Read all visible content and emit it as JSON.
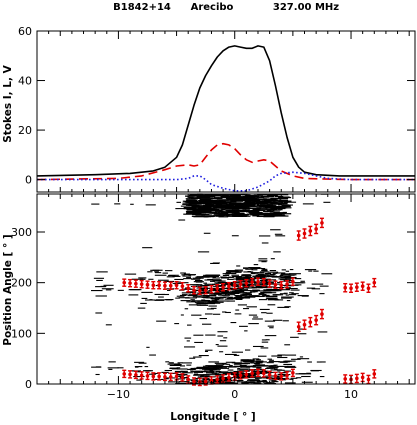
{
  "header": {
    "pulsar": "B1842+14",
    "telescope": "Arecibo",
    "frequency": "327.00 MHz"
  },
  "colors": {
    "stokes_i": "#000000",
    "linear_l": "#e00000",
    "circular_v": "#2020e0",
    "pa_points": "#e00000",
    "density": "#000000"
  },
  "chart_data": [
    {
      "type": "line",
      "title": "",
      "xlabel": "",
      "ylabel": "Stokes I, L, V",
      "xlim": [
        -17,
        15.5
      ],
      "ylim": [
        -5,
        60
      ],
      "x_ticks": [
        -10,
        0,
        10
      ],
      "y_ticks": [
        0,
        20,
        40,
        60
      ],
      "y_tick_labels": [
        "0",
        "20",
        "40",
        "60"
      ],
      "grid": false,
      "legend": "none",
      "series": [
        {
          "key": "I",
          "line_style": "solid",
          "color": "#000000",
          "x": [
            -17,
            -12,
            -9,
            -7,
            -6,
            -5,
            -4.5,
            -4,
            -3.5,
            -3,
            -2.5,
            -2,
            -1.5,
            -1,
            -0.5,
            0,
            0.5,
            1,
            1.5,
            2,
            2.5,
            3,
            3.5,
            4,
            4.5,
            5,
            5.5,
            6,
            7,
            9,
            15.5
          ],
          "values": [
            1.5,
            2,
            2.5,
            3.5,
            5,
            9,
            14,
            22,
            30,
            37,
            42,
            46,
            49.5,
            52,
            53.5,
            54,
            53.5,
            53,
            53,
            54,
            53.5,
            48,
            38,
            27,
            17,
            9,
            5,
            3,
            2,
            1.5,
            1.5
          ]
        },
        {
          "key": "L",
          "line_style": "dashed",
          "color": "#e00000",
          "x": [
            -17,
            -10,
            -8,
            -6,
            -5,
            -4,
            -3.5,
            -3,
            -2.5,
            -2,
            -1.5,
            -1,
            -0.5,
            0,
            0.5,
            1,
            1.5,
            2,
            2.5,
            3,
            3.5,
            4,
            5,
            6,
            8,
            10,
            15.5
          ],
          "values": [
            0,
            0.5,
            1.5,
            4,
            5.5,
            6,
            5.5,
            6,
            9,
            12,
            14,
            14.5,
            14,
            12.5,
            10,
            8,
            7,
            7.5,
            8,
            7.5,
            5.5,
            3.5,
            1.5,
            0.5,
            0.2,
            0,
            0
          ]
        },
        {
          "key": "V",
          "line_style": "dotted",
          "color": "#2020e0",
          "x": [
            -17,
            -8,
            -6,
            -5,
            -4,
            -3.5,
            -3,
            -2.5,
            -2,
            -1,
            0,
            1,
            2,
            3,
            3.5,
            4,
            5,
            6,
            7,
            8,
            10,
            15.5
          ],
          "values": [
            0,
            0,
            0,
            0,
            0.5,
            1.5,
            1.5,
            0,
            -2,
            -3.5,
            -4.5,
            -4.5,
            -3,
            -0.5,
            1.5,
            2.5,
            3,
            2.5,
            1.5,
            0.5,
            0,
            0
          ]
        }
      ]
    },
    {
      "type": "scatter",
      "title": "",
      "xlabel": "Longitude [ ° ]",
      "ylabel": "Position Angle [ ° ]",
      "xlim": [
        -17,
        15.5
      ],
      "ylim": [
        0,
        375
      ],
      "x_ticks": [
        -10,
        0,
        10
      ],
      "x_tick_labels": [
        "−10",
        "0",
        "10"
      ],
      "y_ticks": [
        0,
        100,
        200,
        300
      ],
      "y_tick_labels": [
        "0",
        "100",
        "200",
        "300"
      ],
      "grid": false,
      "series": [
        {
          "key": "pa_main",
          "color": "#e00000",
          "error": 7,
          "x": [
            -9.5,
            -9,
            -8.5,
            -8,
            -7.5,
            -7,
            -6.5,
            -6,
            -5.5,
            -5,
            -4.5,
            -4,
            -3.5,
            -3,
            -2.5,
            -2,
            -1.5,
            -1,
            -0.5,
            0,
            0.5,
            1,
            1.5,
            2,
            2.5,
            3,
            3.5,
            4,
            4.5,
            5
          ],
          "values": [
            20,
            19,
            18,
            17,
            16,
            15,
            15,
            14,
            14,
            15,
            13,
            9,
            5,
            4,
            5,
            7,
            9,
            11,
            13,
            15,
            17,
            19,
            21,
            22,
            21,
            18,
            16,
            15,
            17,
            22
          ]
        },
        {
          "key": "pa_main_wrap",
          "color": "#e00000",
          "error": 7,
          "x": [
            -9.5,
            -9,
            -8.5,
            -8,
            -7.5,
            -7,
            -6.5,
            -6,
            -5.5,
            -5,
            -4.5,
            -4,
            -3.5,
            -3,
            -2.5,
            -2,
            -1.5,
            -1,
            -0.5,
            0,
            0.5,
            1,
            1.5,
            2,
            2.5,
            3,
            3.5,
            4,
            4.5,
            5
          ],
          "values": [
            200,
            199,
            198,
            197,
            196,
            195,
            195,
            194,
            194,
            195,
            193,
            189,
            185,
            184,
            185,
            187,
            189,
            191,
            193,
            195,
            197,
            199,
            201,
            202,
            201,
            198,
            196,
            195,
            197,
            202
          ]
        },
        {
          "key": "pa_trail",
          "color": "#e00000",
          "error": 9,
          "x": [
            5.5,
            6,
            6.5,
            7,
            7.5
          ],
          "values": [
            113,
            117,
            122,
            126,
            138
          ]
        },
        {
          "key": "pa_trail_wrap",
          "color": "#e00000",
          "error": 9,
          "x": [
            5.5,
            6,
            6.5,
            7,
            7.5
          ],
          "values": [
            293,
            297,
            302,
            306,
            318
          ]
        },
        {
          "key": "pa_far",
          "color": "#e00000",
          "error": 8,
          "x": [
            9.5,
            10,
            10.5,
            11,
            11.5,
            12
          ],
          "values": [
            10,
            9,
            11,
            13,
            9,
            20
          ]
        },
        {
          "key": "pa_far_wrap",
          "color": "#e00000",
          "error": 8,
          "x": [
            9.5,
            10,
            10.5,
            11,
            11.5,
            12
          ],
          "values": [
            190,
            189,
            191,
            193,
            189,
            200
          ]
        }
      ]
    }
  ]
}
